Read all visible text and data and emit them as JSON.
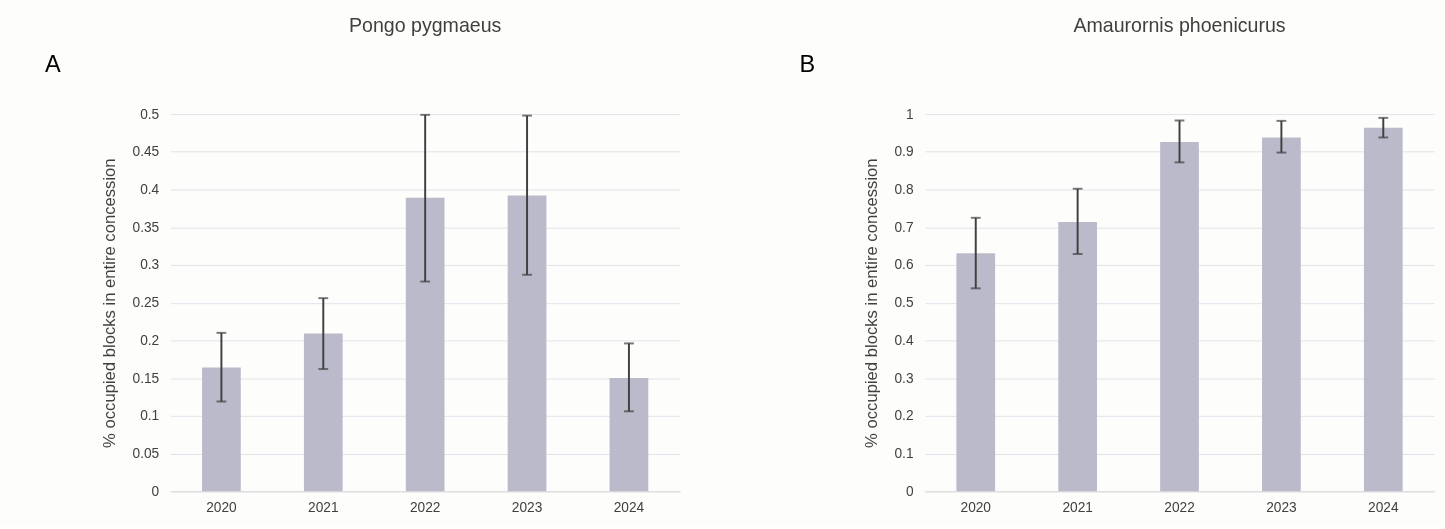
{
  "chart_data": [
    {
      "type": "bar",
      "title": "Pongo pygmaeus",
      "ylabel": "% occupied blocks in entire concession",
      "annotations": [
        "A"
      ],
      "categories": [
        "2020",
        "2021",
        "2022",
        "2023",
        "2024"
      ],
      "values": [
        0.164,
        0.209,
        0.389,
        0.392,
        0.15
      ],
      "color": "#bbbaca",
      "errors": [
        [
          0.119,
          0.21
        ],
        [
          0.162,
          0.256
        ],
        [
          0.278,
          0.499
        ],
        [
          0.287,
          0.498
        ],
        [
          0.106,
          0.196
        ]
      ],
      "ylim": [
        0,
        0.5
      ],
      "yticks": [
        0,
        0.05,
        0.1,
        0.15,
        0.2,
        0.25,
        0.3,
        0.35,
        0.4,
        0.45,
        0.5
      ],
      "grid": "y"
    },
    {
      "type": "bar",
      "title": "Amaurornis phoenicurus",
      "ylabel": "% occupied blocks in entire concession",
      "annotations": [
        "B"
      ],
      "categories": [
        "2020",
        "2021",
        "2022",
        "2023",
        "2024"
      ],
      "values": [
        0.631,
        0.714,
        0.926,
        0.938,
        0.964
      ],
      "color": "#bbbaca",
      "errors": [
        [
          0.538,
          0.725
        ],
        [
          0.629,
          0.802
        ],
        [
          0.872,
          0.983
        ],
        [
          0.898,
          0.982
        ],
        [
          0.938,
          0.99
        ]
      ],
      "ylim": [
        0,
        1
      ],
      "yticks": [
        0,
        0.1,
        0.2,
        0.3,
        0.4,
        0.5,
        0.6,
        0.7,
        0.8,
        0.9,
        1
      ],
      "grid": "y"
    }
  ]
}
